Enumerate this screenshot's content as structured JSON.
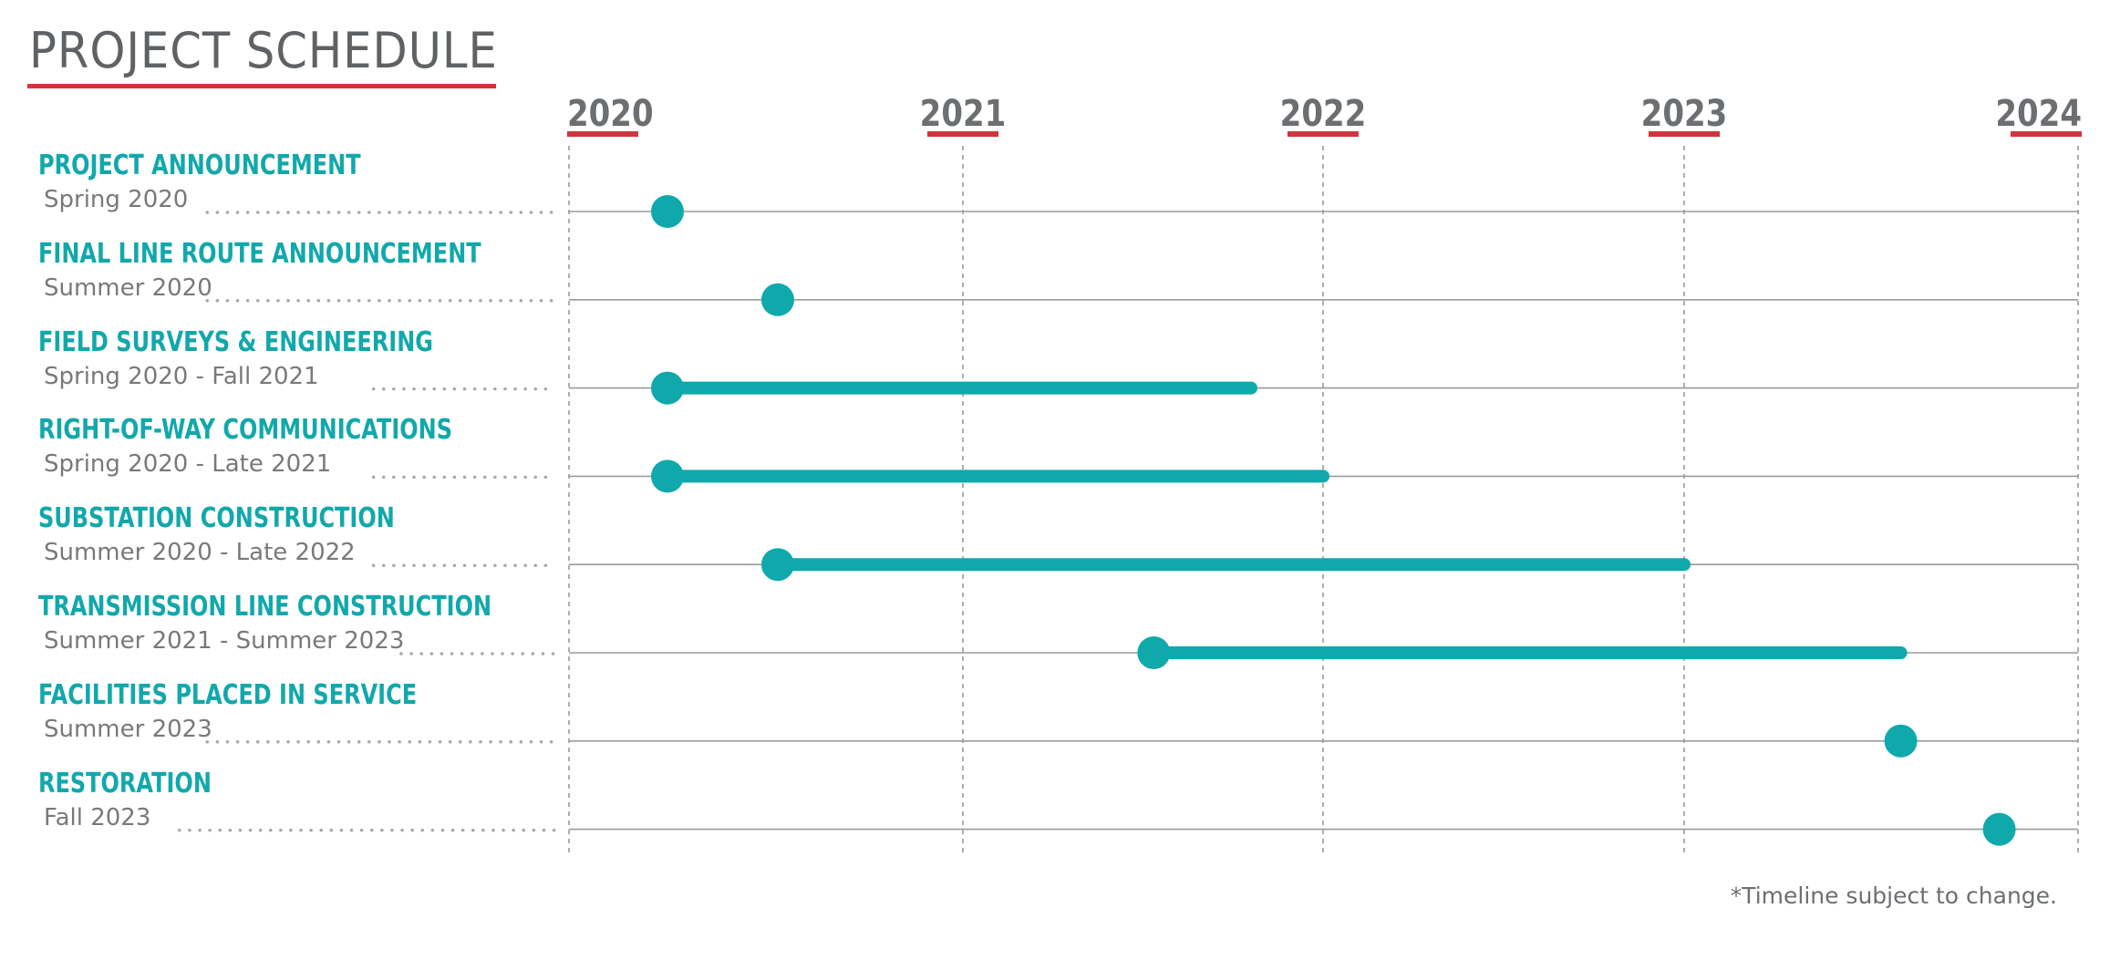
{
  "header": {
    "title": "PROJECT SCHEDULE"
  },
  "footnote": "*Timeline subject to change.",
  "colors": {
    "accent": "#d0353d",
    "bar": "#0fa9ab",
    "task_label": "#12a8ab",
    "date_text": "#77797b",
    "gridline": "#9a9a9a"
  },
  "chart_data": {
    "type": "gantt",
    "title": "PROJECT SCHEDULE",
    "x_axis": {
      "ticks": [
        "2020",
        "2021",
        "2022",
        "2023",
        "2024"
      ],
      "range": [
        2020.0,
        2024.0
      ]
    },
    "grid": true,
    "tasks": [
      {
        "name": "PROJECT ANNOUNCEMENT",
        "date_label": "Spring 2020",
        "start": 2020.25,
        "end": 2020.25
      },
      {
        "name": "FINAL LINE ROUTE ANNOUNCEMENT",
        "date_label": "Summer 2020",
        "start": 2020.53,
        "end": 2020.53
      },
      {
        "name": "FIELD SURVEYS & ENGINEERING",
        "date_label": "Spring 2020 - Fall 2021",
        "start": 2020.25,
        "end": 2021.8
      },
      {
        "name": "RIGHT-OF-WAY COMMUNICATIONS",
        "date_label": "Spring 2020 - Late 2021",
        "start": 2020.25,
        "end": 2022.0
      },
      {
        "name": "SUBSTATION CONSTRUCTION",
        "date_label": "Summer 2020 - Late 2022",
        "start": 2020.53,
        "end": 2023.0
      },
      {
        "name": "TRANSMISSION LINE CONSTRUCTION",
        "date_label": "Summer 2021 - Summer 2023",
        "start": 2021.53,
        "end": 2023.55
      },
      {
        "name": "FACILITIES PLACED IN SERVICE",
        "date_label": "Summer 2023",
        "start": 2023.55,
        "end": 2023.55
      },
      {
        "name": "RESTORATION",
        "date_label": "Fall 2023",
        "start": 2023.8,
        "end": 2023.8
      }
    ]
  }
}
